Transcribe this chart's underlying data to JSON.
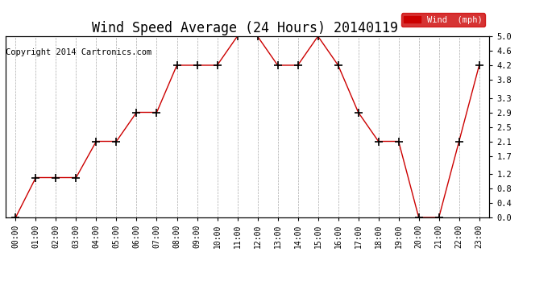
{
  "title": "Wind Speed Average (24 Hours) 20140119",
  "copyright": "Copyright 2014 Cartronics.com",
  "legend_label": "Wind  (mph)",
  "hours": [
    "00:00",
    "01:00",
    "02:00",
    "03:00",
    "04:00",
    "05:00",
    "06:00",
    "07:00",
    "08:00",
    "09:00",
    "10:00",
    "11:00",
    "12:00",
    "13:00",
    "14:00",
    "15:00",
    "16:00",
    "17:00",
    "18:00",
    "19:00",
    "20:00",
    "21:00",
    "22:00",
    "23:00"
  ],
  "values": [
    0.0,
    1.1,
    1.1,
    1.1,
    2.1,
    2.1,
    2.9,
    2.9,
    4.2,
    4.2,
    4.2,
    5.0,
    5.0,
    4.2,
    4.2,
    5.0,
    4.2,
    2.9,
    2.1,
    2.1,
    0.0,
    0.0,
    2.1,
    4.2
  ],
  "line_color": "#cc0000",
  "marker": "+",
  "marker_color": "#000000",
  "ylim_min": 0.0,
  "ylim_max": 5.0,
  "yticks": [
    0.0,
    0.4,
    0.8,
    1.2,
    1.7,
    2.1,
    2.5,
    2.9,
    3.3,
    3.8,
    4.2,
    4.6,
    5.0
  ],
  "background_color": "#ffffff",
  "grid_color": "#aaaaaa",
  "title_fontsize": 12,
  "copyright_fontsize": 7.5,
  "legend_bg": "#cc0000",
  "legend_text_color": "#ffffff",
  "fig_width": 6.9,
  "fig_height": 3.75,
  "dpi": 100
}
